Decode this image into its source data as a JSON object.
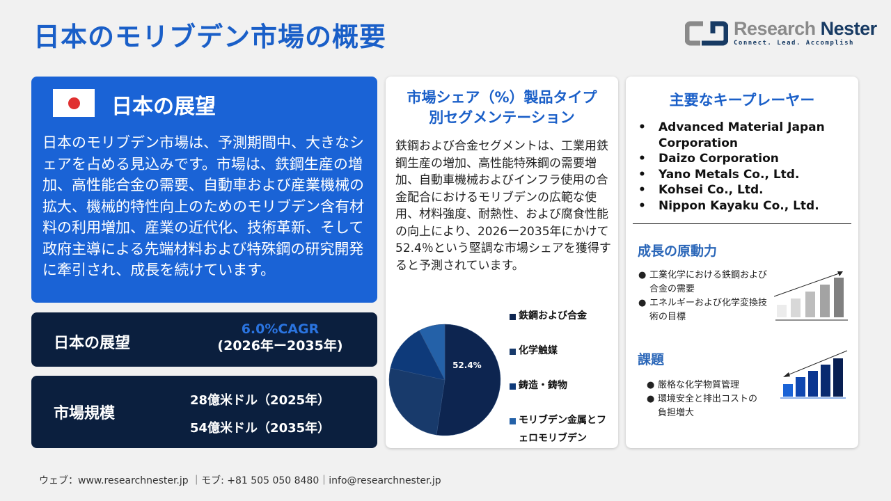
{
  "title": "日本のモリブデン市場の概要",
  "logo": {
    "name_light": "Research",
    "name_bold": "Nester",
    "tagline": "Connect. Lead. Accomplish"
  },
  "outlook": {
    "heading": "日本の展望",
    "text": "日本のモリブデン市場は、予測期間中、大きなシェアを占める見込みです。市場は、鉄鋼生産の増加、高性能合金の需要、自動車および産業機械の拡大、機械的特性向上のためのモリブデン含有材料の利用増加、産業の近代化、技術革新、そして政府主導による先端材料および特殊鋼の研究開発に牽引され、成長を続けています。"
  },
  "cagr": {
    "label": "日本の展望",
    "value": "6.0%CAGR",
    "period": "(2026年ー2035年)"
  },
  "market_size": {
    "label": "市場規模",
    "v2025": "28億米ドル（2025年）",
    "v2035": "54億米ドル（2035年）"
  },
  "segment": {
    "heading": "市場シェア（%）製品タイプ別セグメンテーション",
    "text": "鉄鋼および合金セグメントは、工業用鉄鋼生産の増加、高性能特殊鋼の需要増加、自動車機械およびインフラ使用の合金配合におけるモリブデンの広範な使用、材料強度、耐熱性、および腐食性能の向上により、2026ー2035年にかけて52.4％という堅調な市場シェアを獲得すると予測されています。"
  },
  "chart_data": {
    "type": "pie",
    "categories": [
      "鉄鋼および合金",
      "化学触媒",
      "鋳造・鋳物",
      "モリブデン金属とフェロモリブデン"
    ],
    "values": [
      52.4,
      26,
      14,
      7.6
    ],
    "data_labels": [
      "52.4%",
      "",
      "",
      ""
    ],
    "colors": [
      "#0d2550",
      "#183a6b",
      "#0e3a7a",
      "#2461a8"
    ],
    "legend_position": "right"
  },
  "players": {
    "heading": "主要なキープレーヤー",
    "items": [
      "Advanced Material Japan Corporation",
      "Daizo Corporation",
      "Yano Metals Co., Ltd.",
      "Kohsei Co., Ltd.",
      "Nippon Kayaku Co., Ltd."
    ]
  },
  "drivers": {
    "heading": "成長の原動力",
    "items": [
      "工業化学における鉄鋼および合金の需要",
      "エネルギーおよび化学変換技術の目標"
    ]
  },
  "challenges": {
    "heading": "課題",
    "items": [
      "厳格な化学物質管理",
      "環境安全と排出コストの負担増大"
    ]
  },
  "footer": "ウェブ：www.researchnester.jp ｜モブ: +81 505 050 8480｜info@researchnester.jp"
}
